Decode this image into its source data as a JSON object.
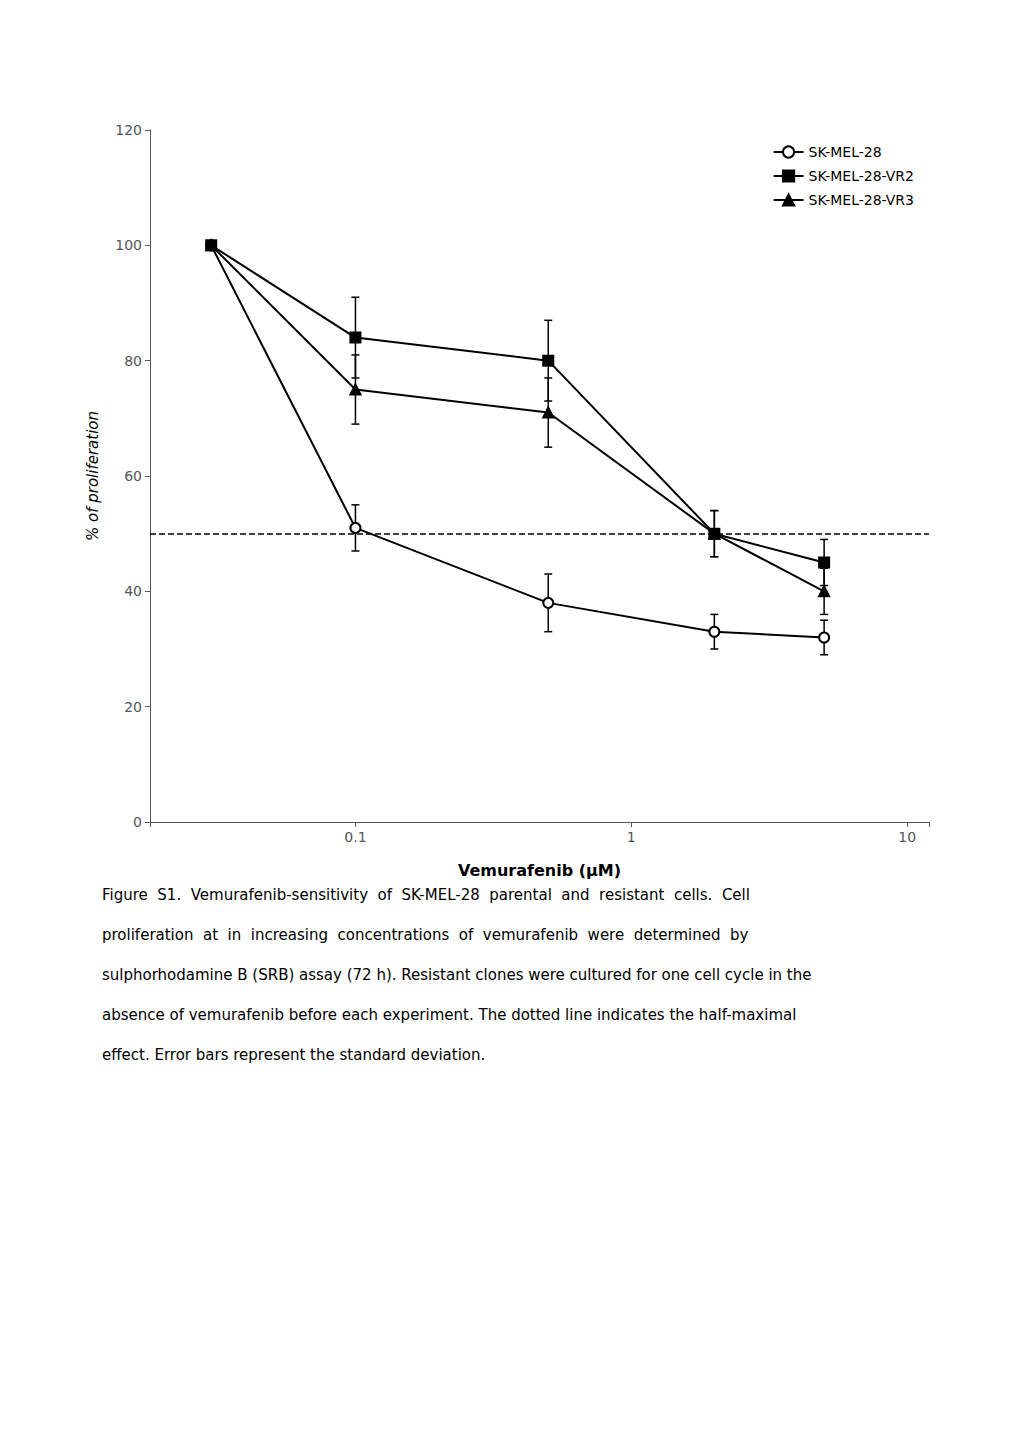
{
  "chart_data": {
    "type": "line",
    "xlabel": "Vemurafenib (μM)",
    "ylabel": "% of proliferation",
    "log": "x",
    "grid": false,
    "legend": "upper right",
    "xlim": [
      0.018,
      12
    ],
    "xticks": [
      0.1,
      1,
      10
    ],
    "ylim": [
      0,
      120
    ],
    "yticks": [
      0,
      20,
      40,
      60,
      80,
      100,
      120
    ],
    "reference_line": 50,
    "x": [
      0.03,
      0.1,
      0.5,
      2,
      5
    ],
    "series": [
      {
        "name": "SK-MEL-28",
        "color": "#000000",
        "marker": "circle-open",
        "values": [
          100,
          51,
          38,
          33,
          32
        ],
        "yerr": [
          0,
          4,
          5,
          3,
          3
        ]
      },
      {
        "name": "SK-MEL-28-VR2",
        "color": "#000000",
        "marker": "square",
        "values": [
          100,
          84,
          80,
          50,
          45
        ],
        "yerr": [
          0,
          7,
          7,
          4,
          4
        ]
      },
      {
        "name": "SK-MEL-28-VR3",
        "color": "#000000",
        "marker": "triangle",
        "values": [
          100,
          75,
          71,
          50,
          40
        ],
        "yerr": [
          0,
          6,
          6,
          4,
          4
        ]
      }
    ],
    "annotations": [
      "Figure  S1.  Vemurafenib-sensitivity  of  SK-MEL-28  parental  and  resistant  cells.  Cell",
      "proliferation  at  in  increasing  concentrations  of  vemurafenib  were  determined  by",
      "sulphorhodamine B (SRB) assay (72 h). Resistant clones were cultured for one cell cycle in the",
      "absence of vemurafenib before each experiment. The dotted line indicates the half-maximal",
      "effect. Error bars represent the standard deviation."
    ]
  }
}
